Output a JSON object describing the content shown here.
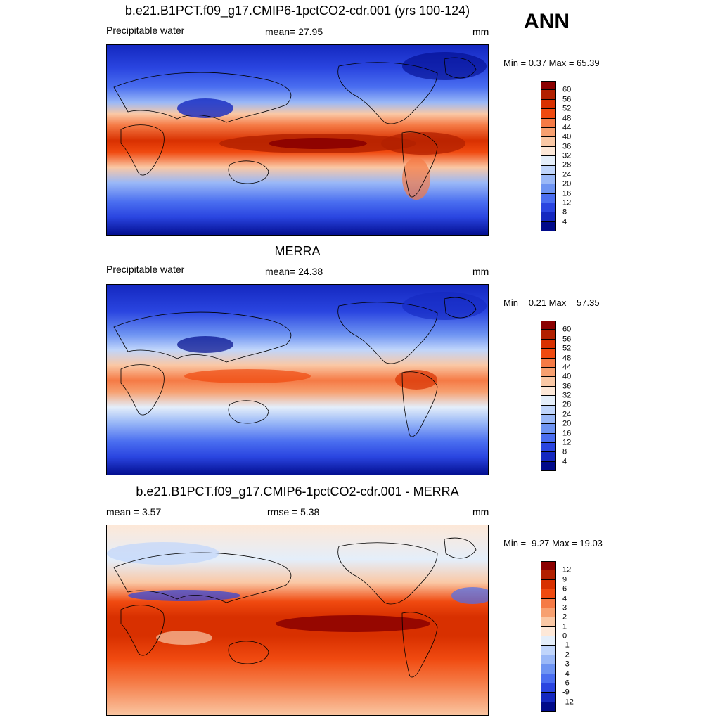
{
  "season": "ANN",
  "panels": [
    {
      "id": "model",
      "title": "b.e21.B1PCT.f09_g17.CMIP6-1pctCO2-cdr.001 (yrs 100-124)",
      "left_label": "Precipitable water",
      "center_label": "mean=  27.95",
      "units": "mm",
      "minmax": "Min =   0.37 Max =  65.39"
    },
    {
      "id": "obs",
      "title": "MERRA",
      "left_label": "Precipitable water",
      "center_label": "mean=  24.38",
      "units": "mm",
      "minmax": "Min =   0.21 Max =  57.35"
    },
    {
      "id": "diff",
      "title": "b.e21.B1PCT.f09_g17.CMIP6-1pctCO2-cdr.001 - MERRA",
      "left_label": "mean =   3.57",
      "center_label": "rmse =   5.38",
      "units": "mm",
      "minmax": "Min =  -9.27 Max =  19.03"
    }
  ],
  "colorbars": {
    "field": {
      "labels": [
        "60",
        "56",
        "52",
        "48",
        "44",
        "40",
        "36",
        "32",
        "28",
        "24",
        "20",
        "16",
        "12",
        "8",
        "4"
      ],
      "colors": [
        "#8b0000",
        "#b22000",
        "#d83000",
        "#f04a10",
        "#f57a45",
        "#f7a070",
        "#fac8a5",
        "#fde8d8",
        "#e4eefa",
        "#c0d5fb",
        "#9ab8f7",
        "#6e94f2",
        "#4a6ef0",
        "#2a45e0",
        "#1428c0",
        "#000a8a"
      ]
    },
    "diff": {
      "labels": [
        "12",
        "9",
        "6",
        "4",
        "3",
        "2",
        "1",
        "0",
        "-1",
        "-2",
        "-3",
        "-4",
        "-6",
        "-9",
        "-12"
      ],
      "colors": [
        "#8b0000",
        "#b22000",
        "#d83000",
        "#f04a10",
        "#f57a45",
        "#f7a070",
        "#fac8a5",
        "#fde8d8",
        "#e4eefa",
        "#c0d5fb",
        "#9ab8f7",
        "#6e94f2",
        "#4a6ef0",
        "#2a45e0",
        "#1428c0",
        "#000a8a"
      ]
    }
  }
}
